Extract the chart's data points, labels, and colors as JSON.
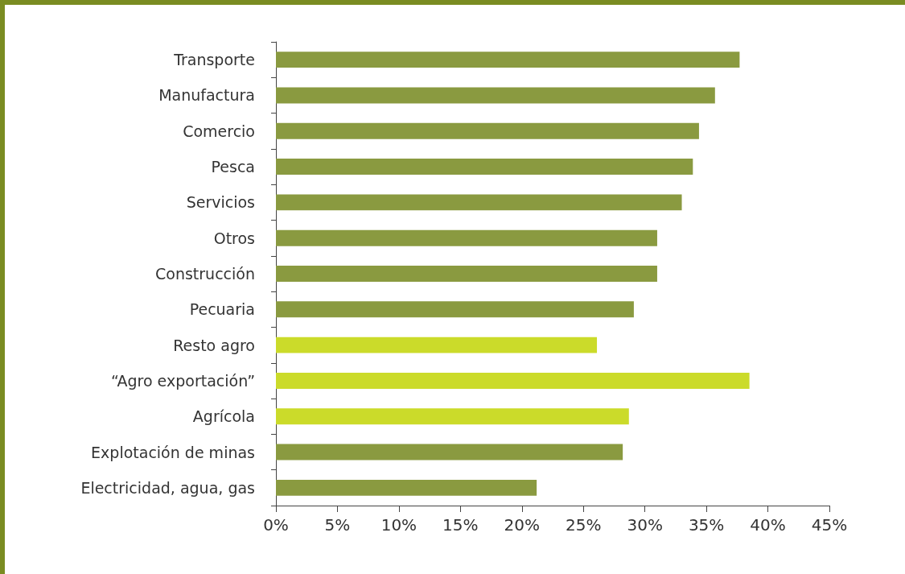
{
  "chart_data": {
    "type": "bar",
    "orientation": "horizontal",
    "categories": [
      "Transporte",
      "Manufactura",
      "Comercio",
      "Pesca",
      "Servicios",
      "Otros",
      "Construcción",
      "Pecuaria",
      "Resto agro",
      "“Agro exportación”",
      "Agrícola",
      "Explotación de minas",
      "Electricidad, agua, gas"
    ],
    "values": [
      37.7,
      35.7,
      34.4,
      33.9,
      33.0,
      31.0,
      31.0,
      29.1,
      26.1,
      38.5,
      28.7,
      28.2,
      21.2
    ],
    "colors": [
      "#8a9a40",
      "#8a9a40",
      "#8a9a40",
      "#8a9a40",
      "#8a9a40",
      "#8a9a40",
      "#8a9a40",
      "#8a9a40",
      "#cbdb2a",
      "#cbdb2a",
      "#cbdb2a",
      "#8a9a40",
      "#8a9a40"
    ],
    "xlim": [
      0,
      45
    ],
    "xticks": [
      {
        "value": 0,
        "label": "0%"
      },
      {
        "value": 5,
        "label": "5%"
      },
      {
        "value": 10,
        "label": "10%"
      },
      {
        "value": 15,
        "label": "15%"
      },
      {
        "value": 20,
        "label": "20%"
      },
      {
        "value": 25,
        "label": "25%"
      },
      {
        "value": 30,
        "label": "30%"
      },
      {
        "value": 35,
        "label": "35%"
      },
      {
        "value": 40,
        "label": "40%"
      },
      {
        "value": 45,
        "label": "45%"
      }
    ],
    "grid": false
  }
}
